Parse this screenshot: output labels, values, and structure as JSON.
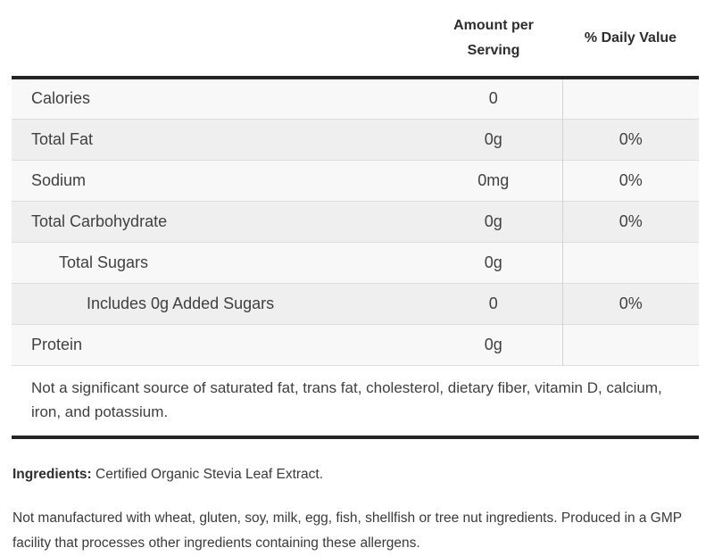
{
  "table": {
    "header": {
      "amount": "Amount per Serving",
      "daily_value": "% Daily Value"
    },
    "rows": [
      {
        "label": "Calories",
        "amount": "0",
        "dv": "",
        "indent": 0,
        "stripe": "light"
      },
      {
        "label": "Total Fat",
        "amount": "0g",
        "dv": "0%",
        "indent": 0,
        "stripe": "dark"
      },
      {
        "label": "Sodium",
        "amount": "0mg",
        "dv": "0%",
        "indent": 0,
        "stripe": "light"
      },
      {
        "label": "Total Carbohydrate",
        "amount": "0g",
        "dv": "0%",
        "indent": 0,
        "stripe": "dark"
      },
      {
        "label": "Total Sugars",
        "amount": "0g",
        "dv": "",
        "indent": 1,
        "stripe": "light"
      },
      {
        "label": "Includes 0g Added Sugars",
        "amount": "0",
        "dv": "0%",
        "indent": 2,
        "stripe": "dark"
      },
      {
        "label": "Protein",
        "amount": "0g",
        "dv": "",
        "indent": 0,
        "stripe": "light"
      }
    ],
    "footnote": "Not a significant source of saturated fat, trans fat, cholesterol, dietary fiber, vitamin D, calcium, iron, and potassium."
  },
  "ingredients": {
    "label": "Ingredients:",
    "text": "Certified Organic Stevia Leaf Extract."
  },
  "allergen_note": "Not manufactured with wheat, gluten, soy, milk, egg, fish, shellfish or tree nut ingredients. Produced in a GMP facility that processes other ingredients containing these allergens.",
  "colors": {
    "stripe_light": "#f8f8f8",
    "stripe_dark": "#efefef",
    "row_separator": "#dddddd",
    "column_divider": "#d4d4d4",
    "heavy_border": "#242424",
    "text": "#404040"
  }
}
